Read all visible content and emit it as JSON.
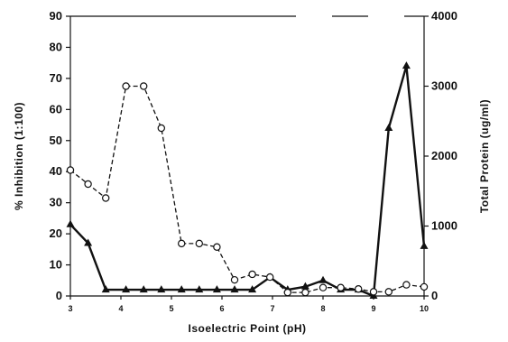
{
  "chart_data": {
    "type": "line",
    "title": "",
    "xlabel": "Isoelectric Point (pH)",
    "ylabel": "% Inhibition (1:100)",
    "y2label": "Total Protein (ug/ml)",
    "xlim": [
      3,
      10
    ],
    "ylim": [
      0,
      90
    ],
    "y2lim": [
      0,
      4000
    ],
    "x_ticks": [
      3,
      4,
      5,
      6,
      7,
      8,
      9,
      10
    ],
    "x_tick_labels": [
      "3",
      "4",
      "5",
      "6",
      "7",
      "8",
      "9",
      "10"
    ],
    "y_ticks": [
      0,
      10,
      20,
      30,
      40,
      50,
      60,
      70,
      80,
      90
    ],
    "y_tick_labels": [
      "0",
      "10",
      "20",
      "30",
      "40",
      "50",
      "60",
      "70",
      "80",
      "90"
    ],
    "y2_ticks": [
      0,
      1000,
      2000,
      3000,
      4000
    ],
    "y2_tick_labels": [
      "0",
      "1000",
      "2000",
      "3000",
      "4000"
    ],
    "grid": false,
    "legend": "none",
    "series": [
      {
        "axis": "left",
        "style": "solid",
        "marker": "triangle",
        "color": "#111111",
        "x": [
          3.0,
          3.35,
          3.7,
          4.1,
          4.45,
          4.8,
          5.2,
          5.55,
          5.9,
          6.25,
          6.6,
          6.95,
          7.3,
          7.65,
          8.0,
          8.35,
          8.7,
          9.0,
          9.3,
          9.65,
          10.0
        ],
        "y": [
          23,
          17,
          2,
          2,
          2,
          2,
          2,
          2,
          2,
          2,
          2,
          6,
          2,
          3,
          5,
          2,
          2,
          0,
          54,
          74,
          16
        ]
      },
      {
        "axis": "right",
        "style": "dashed",
        "marker": "circle",
        "color": "#111111",
        "x": [
          3.0,
          3.35,
          3.7,
          4.1,
          4.45,
          4.8,
          5.2,
          5.55,
          5.9,
          6.25,
          6.6,
          6.95,
          7.3,
          7.65,
          8.0,
          8.35,
          8.7,
          9.0,
          9.3,
          9.65,
          10.0
        ],
        "y": [
          1800,
          1600,
          1400,
          3000,
          3000,
          2400,
          750,
          750,
          700,
          230,
          310,
          270,
          50,
          50,
          120,
          120,
          100,
          60,
          60,
          160,
          130
        ]
      }
    ]
  }
}
